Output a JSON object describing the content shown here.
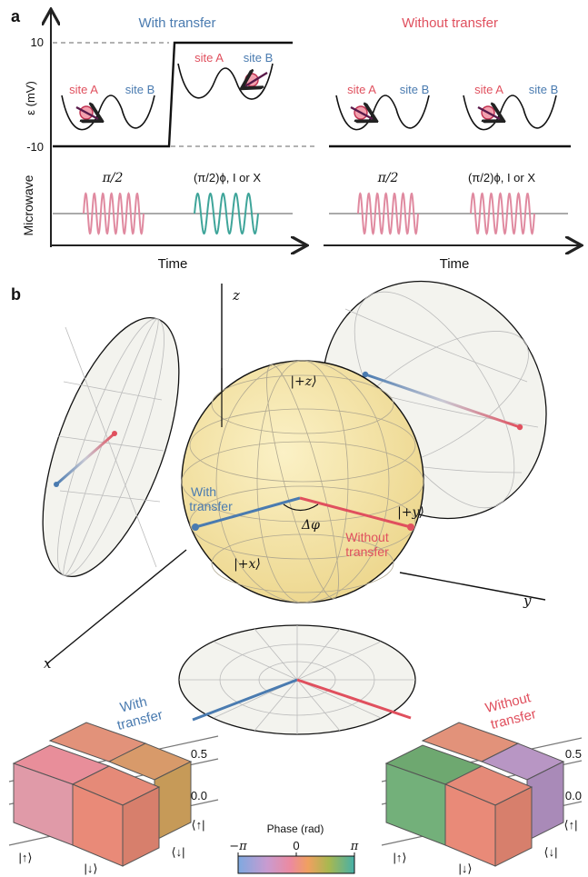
{
  "panel_a": {
    "label": "a",
    "title_with": "With transfer",
    "title_without": "Without transfer",
    "y_axis_label": "ε (mV)",
    "y_tick_high": "10",
    "y_tick_low": "-10",
    "site_a": "site A",
    "site_b": "site B",
    "microwave_label": "Microwave",
    "pulse_1": "π/2",
    "pulse_2": "(π/2)ϕ, I or X",
    "time_label": "Time"
  },
  "panel_b": {
    "label": "b",
    "axis_z": "z",
    "axis_y": "y",
    "axis_x": "x",
    "state_plus_z": "|+z⟩",
    "state_plus_y": "|+y⟩",
    "state_plus_x": "|+x⟩",
    "delta_phi": "Δφ",
    "with_transfer_line1": "With",
    "with_transfer_line2": "transfer",
    "without_transfer_line1": "Without",
    "without_transfer_line2": "transfer"
  },
  "panel_c": {
    "with_title_1": "With",
    "with_title_2": "transfer",
    "without_title_1": "Without",
    "without_title_2": "transfer",
    "tick_high": "0.5",
    "tick_low": "0.0",
    "ket_up": "|↑⟩",
    "ket_down": "|↓⟩",
    "bra_up": "⟨↑|",
    "bra_down": "⟨↓|",
    "colorbar_title": "Phase (rad)",
    "colorbar_min": "−π",
    "colorbar_mid": "0",
    "colorbar_max": "π"
  },
  "colors": {
    "blue": "#4a7bb0",
    "red": "#e0505e",
    "pink_wave": "#e08aa0",
    "teal_wave": "#3fa59a",
    "sphere": "#f7e6a6"
  }
}
